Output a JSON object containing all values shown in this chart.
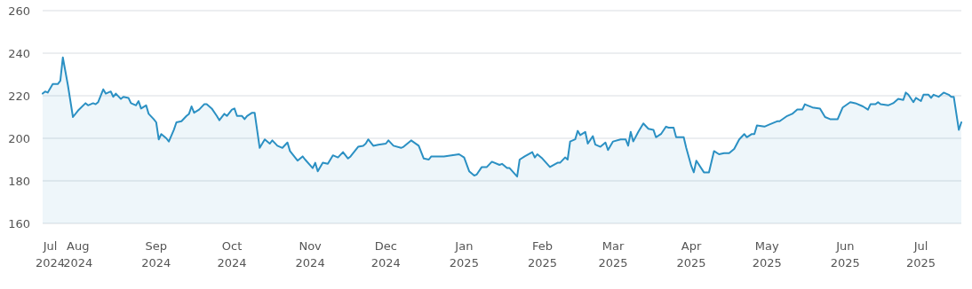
{
  "chart_data": {
    "type": "area",
    "x": [
      "2024-07-18",
      "2024-07-19",
      "2024-07-20",
      "2024-07-22",
      "2024-07-24",
      "2024-07-25",
      "2024-07-26",
      "2024-07-28",
      "2024-07-30",
      "2024-08-01",
      "2024-08-04",
      "2024-08-05",
      "2024-08-07",
      "2024-08-08",
      "2024-08-09",
      "2024-08-11",
      "2024-08-12",
      "2024-08-14",
      "2024-08-15",
      "2024-08-16",
      "2024-08-18",
      "2024-08-19",
      "2024-08-21",
      "2024-08-22",
      "2024-08-24",
      "2024-08-25",
      "2024-08-26",
      "2024-08-28",
      "2024-08-29",
      "2024-08-31",
      "2024-09-01",
      "2024-09-02",
      "2024-09-03",
      "2024-09-05",
      "2024-09-06",
      "2024-09-08",
      "2024-09-09",
      "2024-09-11",
      "2024-09-13",
      "2024-09-14",
      "2024-09-15",
      "2024-09-16",
      "2024-09-18",
      "2024-09-20",
      "2024-09-21",
      "2024-09-23",
      "2024-09-25",
      "2024-09-26",
      "2024-09-28",
      "2024-09-29",
      "2024-10-01",
      "2024-10-02",
      "2024-10-03",
      "2024-10-05",
      "2024-10-06",
      "2024-10-07",
      "2024-10-09",
      "2024-10-10",
      "2024-10-12",
      "2024-10-14",
      "2024-10-16",
      "2024-10-17",
      "2024-10-19",
      "2024-10-21",
      "2024-10-23",
      "2024-10-24",
      "2024-10-27",
      "2024-10-29",
      "2024-10-30",
      "2024-11-02",
      "2024-11-03",
      "2024-11-04",
      "2024-11-06",
      "2024-11-08",
      "2024-11-10",
      "2024-11-12",
      "2024-11-14",
      "2024-11-16",
      "2024-11-17",
      "2024-11-20",
      "2024-11-22",
      "2024-11-23",
      "2024-11-24",
      "2024-11-26",
      "2024-11-28",
      "2024-12-01",
      "2024-12-02",
      "2024-12-04",
      "2024-12-07",
      "2024-12-08",
      "2024-12-11",
      "2024-12-14",
      "2024-12-16",
      "2024-12-18",
      "2024-12-19",
      "2024-12-24",
      "2024-12-27",
      "2024-12-30",
      "2025-01-01",
      "2025-01-03",
      "2025-01-05",
      "2025-01-06",
      "2025-01-08",
      "2025-01-10",
      "2025-01-12",
      "2025-01-15",
      "2025-01-16",
      "2025-01-18",
      "2025-01-19",
      "2025-01-22",
      "2025-01-23",
      "2025-01-25",
      "2025-01-28",
      "2025-01-29",
      "2025-01-30",
      "2025-02-01",
      "2025-02-04",
      "2025-02-07",
      "2025-02-08",
      "2025-02-10",
      "2025-02-11",
      "2025-02-12",
      "2025-02-14",
      "2025-02-15",
      "2025-02-16",
      "2025-02-18",
      "2025-02-19",
      "2025-02-21",
      "2025-02-22",
      "2025-02-24",
      "2025-02-26",
      "2025-02-27",
      "2025-03-01",
      "2025-03-04",
      "2025-03-06",
      "2025-03-07",
      "2025-03-08",
      "2025-03-09",
      "2025-03-11",
      "2025-03-13",
      "2025-03-15",
      "2025-03-17",
      "2025-03-18",
      "2025-03-20",
      "2025-03-22",
      "2025-03-23",
      "2025-03-25",
      "2025-03-26",
      "2025-03-29",
      "2025-03-30",
      "2025-04-01",
      "2025-04-02",
      "2025-04-03",
      "2025-04-06",
      "2025-04-08",
      "2025-04-10",
      "2025-04-12",
      "2025-04-14",
      "2025-04-16",
      "2025-04-18",
      "2025-04-20",
      "2025-04-22",
      "2025-04-23",
      "2025-04-25",
      "2025-04-26",
      "2025-04-27",
      "2025-04-30",
      "2025-05-02",
      "2025-05-05",
      "2025-05-06",
      "2025-05-09",
      "2025-05-11",
      "2025-05-13",
      "2025-05-15",
      "2025-05-16",
      "2025-05-17",
      "2025-05-19",
      "2025-05-22",
      "2025-05-24",
      "2025-05-26",
      "2025-05-29",
      "2025-05-31",
      "2025-06-03",
      "2025-06-05",
      "2025-06-08",
      "2025-06-10",
      "2025-06-11",
      "2025-06-13",
      "2025-06-14",
      "2025-06-15",
      "2025-06-18",
      "2025-06-20",
      "2025-06-22",
      "2025-06-24",
      "2025-06-25",
      "2025-06-26",
      "2025-06-28",
      "2025-06-29",
      "2025-07-01",
      "2025-07-02",
      "2025-07-04",
      "2025-07-05",
      "2025-07-06",
      "2025-07-08",
      "2025-07-10",
      "2025-07-12",
      "2025-07-13",
      "2025-07-14",
      "2025-07-16",
      "2025-07-17"
    ],
    "series": [
      {
        "color": "#2b90c3",
        "values": [
          221,
          222,
          221.5,
          225.5,
          225.5,
          227,
          238,
          225,
          210,
          213,
          216.5,
          215.5,
          216.5,
          216,
          217,
          223,
          221,
          222,
          219.5,
          221,
          218.5,
          219.5,
          219,
          216.5,
          215.5,
          217.5,
          214,
          215.5,
          211.5,
          209,
          207.5,
          199.5,
          202,
          200,
          198.5,
          204,
          207.5,
          208,
          210.5,
          211.5,
          215,
          212,
          213.5,
          216,
          216,
          214,
          210.5,
          208.5,
          211.5,
          210.5,
          213.5,
          214,
          210.5,
          210.5,
          209,
          210.5,
          212,
          212,
          195.5,
          199.5,
          197.5,
          199,
          196.5,
          195.5,
          198,
          194,
          189.5,
          191.5,
          190,
          186,
          188.5,
          184.5,
          188.5,
          188,
          192,
          191,
          193.5,
          190.5,
          191.5,
          196,
          196.5,
          197.5,
          199.5,
          196.5,
          197,
          197.5,
          199,
          196.5,
          195.5,
          196,
          199,
          196.5,
          190.5,
          190,
          191.5,
          191.5,
          192,
          192.5,
          191,
          184.5,
          182.5,
          183,
          186.5,
          186.5,
          189,
          187.5,
          188,
          186,
          186,
          182,
          190,
          191.5,
          193.5,
          191,
          192.5,
          190.5,
          186.5,
          188.5,
          188.5,
          191,
          190,
          198.5,
          199.5,
          203.5,
          201.5,
          203,
          197.5,
          201,
          197,
          196,
          198,
          194.5,
          198.5,
          199.5,
          199.5,
          196.5,
          203,
          198.5,
          203,
          207,
          204.5,
          204,
          200.5,
          202,
          205.5,
          205,
          205,
          200.5,
          200.5,
          195.5,
          187,
          184,
          189.5,
          184,
          184,
          194,
          192.5,
          193,
          193,
          195,
          199.5,
          202,
          200.5,
          202,
          202,
          206,
          205.5,
          206.5,
          208,
          208,
          210.5,
          211.5,
          213.5,
          213.5,
          216,
          215.5,
          214.5,
          214,
          210,
          209,
          209,
          214.5,
          217,
          216.5,
          215,
          213.5,
          216,
          216,
          217,
          216,
          215.5,
          216.5,
          218.5,
          218,
          221.5,
          220.5,
          217,
          219,
          217.5,
          220.5,
          220.5,
          219,
          220.5,
          219.5,
          221.5,
          220.5,
          219.5,
          219.5,
          204,
          207.5
        ]
      }
    ],
    "ylim": [
      160,
      260
    ],
    "yticks": [
      160,
      180,
      200,
      220,
      240,
      260
    ],
    "xlim": [
      "2024-07-18",
      "2025-07-17"
    ],
    "xticks": [
      {
        "value": "2024-07-21",
        "label": "Jul 2024"
      },
      {
        "value": "2024-08-01",
        "label": "Aug 2024"
      },
      {
        "value": "2024-09-01",
        "label": "Sep 2024"
      },
      {
        "value": "2024-10-01",
        "label": "Oct 2024"
      },
      {
        "value": "2024-11-01",
        "label": "Nov 2024"
      },
      {
        "value": "2024-12-01",
        "label": "Dec 2024"
      },
      {
        "value": "2025-01-01",
        "label": "Jan 2025"
      },
      {
        "value": "2025-02-01",
        "label": "Feb 2025"
      },
      {
        "value": "2025-03-01",
        "label": "Mar 2025"
      },
      {
        "value": "2025-04-01",
        "label": "Apr 2025"
      },
      {
        "value": "2025-05-01",
        "label": "May 2025"
      },
      {
        "value": "2025-06-01",
        "label": "Jun 2025"
      },
      {
        "value": "2025-07-01",
        "label": "Jul 2025"
      }
    ],
    "grid": "y"
  }
}
